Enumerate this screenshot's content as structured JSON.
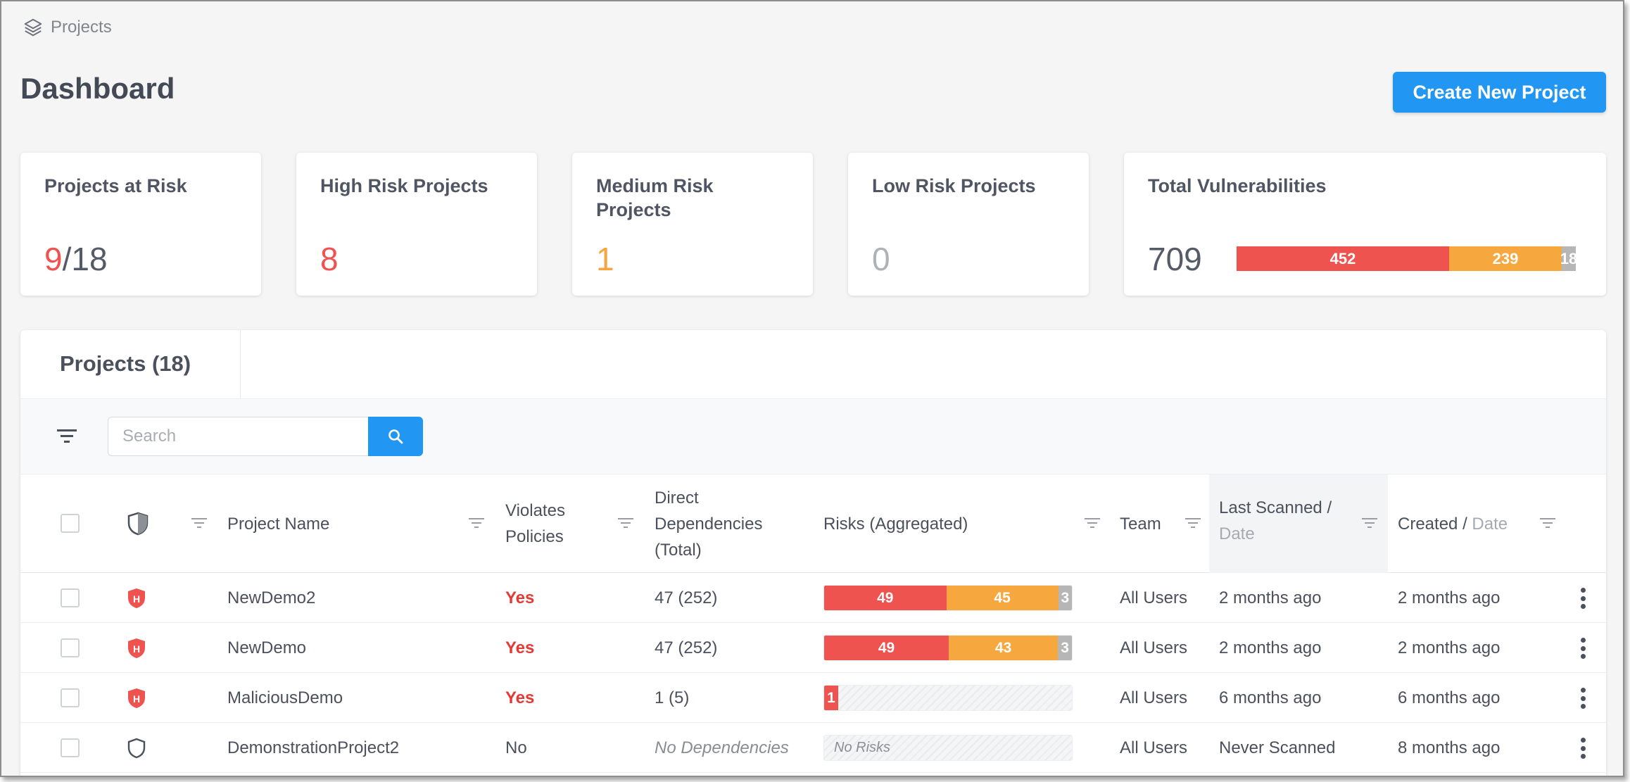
{
  "breadcrumb": {
    "label": "Projects",
    "icon": "layers-icon"
  },
  "page_title": "Dashboard",
  "create_button": "Create New Project",
  "cards": {
    "at_risk": {
      "label": "Projects at Risk",
      "value": "9",
      "sep": "/",
      "total": "18"
    },
    "high": {
      "label": "High Risk Projects",
      "value": "8"
    },
    "medium": {
      "label_line1": "Medium Risk",
      "label_line2": "Projects",
      "value": "1"
    },
    "low": {
      "label": "Low Risk Projects",
      "value": "0"
    },
    "vulns": {
      "label": "Total Vulnerabilities",
      "value": "709",
      "high": 452,
      "medium": 239,
      "low": 18
    }
  },
  "colors": {
    "high": "#ef5350",
    "medium": "#f6a83f",
    "low": "#b6b6b6",
    "accent": "#2196f3"
  },
  "projects_tab": "Projects (18)",
  "search": {
    "placeholder": "Search"
  },
  "columns": {
    "project_name": "Project Name",
    "violates_1": "Violates",
    "violates_2": "Policies",
    "deps_1": "Direct",
    "deps_2": "Dependencies",
    "deps_3": "(Total)",
    "risks": "Risks (Aggregated)",
    "team": "Team",
    "last_scanned_1": "Last Scanned",
    "last_scanned_sep": "/",
    "last_scanned_2": "Date",
    "created_1": "Created",
    "created_sep": "/",
    "created_2": "Date"
  },
  "rows": [
    {
      "name": "NewDemo2",
      "violates": "Yes",
      "deps": "47",
      "deps_total": "(252)",
      "risk_high": 49,
      "risk_medium": 45,
      "risk_low": 3,
      "team": "All Users",
      "last_scanned": "2 months ago",
      "created": "2 months ago",
      "shield": "high-risk-shield-icon"
    },
    {
      "name": "NewDemo",
      "violates": "Yes",
      "deps": "47",
      "deps_total": "(252)",
      "risk_high": 49,
      "risk_medium": 43,
      "risk_low": 3,
      "team": "All Users",
      "last_scanned": "2 months ago",
      "created": "2 months ago",
      "shield": "high-risk-shield-icon"
    },
    {
      "name": "MaliciousDemo",
      "violates": "Yes",
      "deps": "1",
      "deps_total": "(5)",
      "risk_high": 1,
      "risk_medium": 0,
      "risk_low": 0,
      "team": "All Users",
      "last_scanned": "6 months ago",
      "created": "6 months ago",
      "shield": "high-risk-shield-icon"
    },
    {
      "name": "DemonstrationProject2",
      "violates": "No",
      "deps_text": "No Dependencies",
      "risks_text": "No Risks",
      "team": "All Users",
      "last_scanned": "Never Scanned",
      "created": "8 months ago",
      "shield": "shield-outline-icon"
    }
  ]
}
